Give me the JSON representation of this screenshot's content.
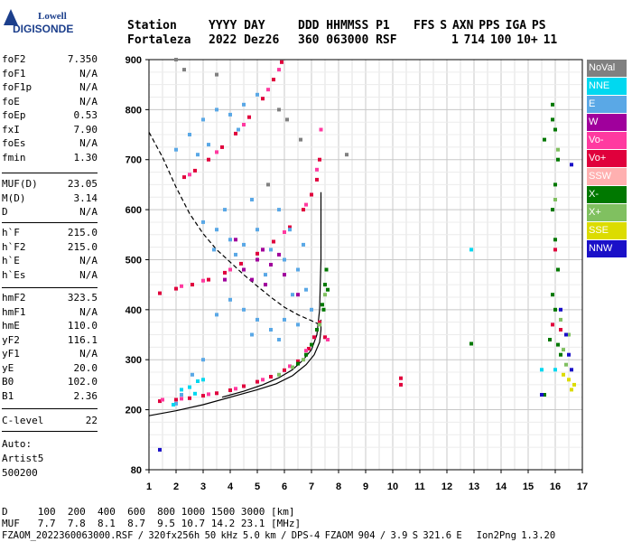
{
  "logo": {
    "line1": "Lowell",
    "line2": "DIGISONDE"
  },
  "header": {
    "labels": [
      "Station",
      "YYYY DAY",
      "DDD HHMMSS P1",
      "FFS S AXN PPS IGA PS"
    ],
    "values": [
      "Fortaleza",
      "2022 Dez26",
      "360 063000 RSF",
      "1 714 100 10+ 11"
    ]
  },
  "params": {
    "group1": [
      {
        "k": "foF2",
        "v": "7.350"
      },
      {
        "k": "foF1",
        "v": "N/A"
      },
      {
        "k": "foF1p",
        "v": "N/A"
      },
      {
        "k": "foE",
        "v": "N/A"
      },
      {
        "k": "foEp",
        "v": "0.53"
      },
      {
        "k": "fxI",
        "v": "7.90"
      },
      {
        "k": "foEs",
        "v": "N/A"
      },
      {
        "k": "fmin",
        "v": "1.30"
      }
    ],
    "group2": [
      {
        "k": "MUF(D)",
        "v": "23.05"
      },
      {
        "k": "M(D)",
        "v": "3.14"
      },
      {
        "k": "D",
        "v": "N/A"
      }
    ],
    "group3": [
      {
        "k": "h`F",
        "v": "215.0"
      },
      {
        "k": "h`F2",
        "v": "215.0"
      },
      {
        "k": "h`E",
        "v": "N/A"
      },
      {
        "k": "h`Es",
        "v": "N/A"
      }
    ],
    "group4": [
      {
        "k": "hmF2",
        "v": "323.5"
      },
      {
        "k": "hmF1",
        "v": "N/A"
      },
      {
        "k": "hmE",
        "v": "110.0"
      },
      {
        "k": "yF2",
        "v": "116.1"
      },
      {
        "k": "yF1",
        "v": "N/A"
      },
      {
        "k": "yE",
        "v": "20.0"
      },
      {
        "k": "B0",
        "v": "102.0"
      },
      {
        "k": "B1",
        "v": "2.36"
      }
    ],
    "group5": [
      {
        "k": "C-level",
        "v": "22"
      }
    ],
    "footer_lines": [
      "Auto:",
      "Artist5",
      "500200"
    ]
  },
  "legend": [
    {
      "label": "NoVal",
      "color": "#808080"
    },
    {
      "label": "NNE",
      "color": "#00d8f0"
    },
    {
      "label": "E",
      "color": "#5aa8e6"
    },
    {
      "label": "W",
      "color": "#a0009c"
    },
    {
      "label": "Vo-",
      "color": "#ff3aa0"
    },
    {
      "label": "Vo+",
      "color": "#e0003c"
    },
    {
      "label": "SSW",
      "color": "#ffb0b0"
    },
    {
      "label": "X-",
      "color": "#007800"
    },
    {
      "label": "X+",
      "color": "#80c060"
    },
    {
      "label": "SSE",
      "color": "#dcdc00"
    },
    {
      "label": "NNW",
      "color": "#1a10c8"
    }
  ],
  "chart_data": {
    "type": "scatter",
    "xlim": [
      1,
      17
    ],
    "ylim": [
      80,
      900
    ],
    "x_ticks": [
      1,
      2,
      3,
      4,
      5,
      6,
      7,
      8,
      9,
      10,
      11,
      12,
      13,
      14,
      15,
      16,
      17
    ],
    "y_ticks": [
      80,
      200,
      300,
      400,
      500,
      600,
      700,
      800,
      900
    ],
    "grid": true,
    "series": [
      {
        "color": "#e0003c",
        "points": [
          [
            1.4,
            217
          ],
          [
            2.0,
            220
          ],
          [
            2.5,
            223
          ],
          [
            3.0,
            228
          ],
          [
            3.5,
            233
          ],
          [
            4.0,
            239
          ],
          [
            4.5,
            247
          ],
          [
            5.0,
            256
          ],
          [
            5.5,
            266
          ],
          [
            6.0,
            279
          ],
          [
            6.5,
            297
          ],
          [
            6.9,
            322
          ],
          [
            7.1,
            345
          ],
          [
            7.3,
            375
          ],
          [
            7.5,
            345
          ]
        ]
      },
      {
        "color": "#ff3aa0",
        "points": [
          [
            1.5,
            220
          ],
          [
            2.2,
            222
          ],
          [
            3.2,
            231
          ],
          [
            4.2,
            242
          ],
          [
            5.2,
            260
          ],
          [
            6.2,
            287
          ],
          [
            6.8,
            318
          ],
          [
            7.2,
            360
          ],
          [
            7.6,
            340
          ]
        ]
      },
      {
        "color": "#007800",
        "points": [
          [
            6.5,
            292
          ],
          [
            6.8,
            310
          ],
          [
            7.0,
            330
          ],
          [
            7.2,
            360
          ],
          [
            7.4,
            410
          ],
          [
            7.5,
            450
          ],
          [
            7.55,
            480
          ],
          [
            7.6,
            440
          ],
          [
            7.45,
            400
          ]
        ]
      },
      {
        "color": "#80c060",
        "points": [
          [
            5.8,
            270
          ],
          [
            6.3,
            285
          ],
          [
            6.7,
            300
          ],
          [
            7.3,
            370
          ],
          [
            7.5,
            430
          ]
        ]
      },
      {
        "color": "#e0003c",
        "points": [
          [
            1.4,
            433
          ],
          [
            2.0,
            442
          ],
          [
            2.6,
            450
          ],
          [
            3.2,
            460
          ],
          [
            3.8,
            474
          ],
          [
            4.4,
            492
          ],
          [
            5.0,
            512
          ],
          [
            5.6,
            536
          ],
          [
            6.2,
            565
          ],
          [
            6.7,
            600
          ],
          [
            7.0,
            630
          ],
          [
            7.2,
            660
          ],
          [
            7.3,
            700
          ]
        ]
      },
      {
        "color": "#ff3aa0",
        "points": [
          [
            2.2,
            447
          ],
          [
            3.0,
            458
          ],
          [
            4.0,
            480
          ],
          [
            5.2,
            520
          ],
          [
            6.0,
            555
          ],
          [
            6.8,
            610
          ],
          [
            7.2,
            680
          ],
          [
            7.35,
            760
          ]
        ]
      },
      {
        "color": "#e0003c",
        "points": [
          [
            2.3,
            665
          ],
          [
            2.7,
            678
          ],
          [
            3.2,
            700
          ],
          [
            3.7,
            725
          ],
          [
            4.2,
            752
          ],
          [
            4.7,
            785
          ],
          [
            5.2,
            822
          ],
          [
            5.6,
            860
          ],
          [
            5.9,
            895
          ]
        ]
      },
      {
        "color": "#ff3aa0",
        "points": [
          [
            2.5,
            670
          ],
          [
            3.5,
            715
          ],
          [
            4.5,
            770
          ],
          [
            5.4,
            840
          ],
          [
            5.8,
            880
          ]
        ]
      },
      {
        "color": "#5aa8e6",
        "points": [
          [
            2.0,
            720
          ],
          [
            2.5,
            750
          ],
          [
            3.0,
            780
          ],
          [
            3.5,
            800
          ],
          [
            4.0,
            790
          ],
          [
            4.5,
            810
          ],
          [
            5.0,
            830
          ],
          [
            3.2,
            730
          ],
          [
            2.8,
            710
          ],
          [
            4.3,
            760
          ]
        ]
      },
      {
        "color": "#5aa8e6",
        "points": [
          [
            3.0,
            575
          ],
          [
            3.5,
            560
          ],
          [
            4.0,
            540
          ],
          [
            4.5,
            530
          ],
          [
            5.0,
            560
          ],
          [
            5.5,
            520
          ],
          [
            6.0,
            500
          ],
          [
            6.5,
            480
          ],
          [
            5.8,
            600
          ],
          [
            4.8,
            620
          ],
          [
            3.8,
            600
          ],
          [
            6.2,
            560
          ],
          [
            6.7,
            530
          ],
          [
            5.3,
            470
          ],
          [
            4.2,
            510
          ],
          [
            3.4,
            520
          ]
        ]
      },
      {
        "color": "#5aa8e6",
        "points": [
          [
            4.0,
            420
          ],
          [
            4.5,
            400
          ],
          [
            5.0,
            380
          ],
          [
            5.5,
            360
          ],
          [
            6.0,
            380
          ],
          [
            6.5,
            370
          ],
          [
            7.0,
            400
          ],
          [
            4.8,
            350
          ],
          [
            5.8,
            340
          ],
          [
            3.5,
            390
          ],
          [
            6.8,
            440
          ],
          [
            2.2,
            230
          ],
          [
            2.0,
            212
          ],
          [
            3.0,
            300
          ],
          [
            2.6,
            270
          ],
          [
            6.3,
            430
          ]
        ]
      },
      {
        "color": "#a0009c",
        "points": [
          [
            4.5,
            480
          ],
          [
            5.0,
            500
          ],
          [
            5.5,
            490
          ],
          [
            6.0,
            470
          ],
          [
            4.8,
            460
          ],
          [
            5.3,
            450
          ],
          [
            6.5,
            430
          ],
          [
            5.2,
            520
          ],
          [
            4.2,
            540
          ],
          [
            5.8,
            510
          ],
          [
            3.8,
            460
          ]
        ]
      },
      {
        "color": "#007800",
        "points": [
          [
            15.9,
            780
          ],
          [
            16.0,
            760
          ],
          [
            16.1,
            700
          ],
          [
            16.0,
            650
          ],
          [
            15.9,
            600
          ],
          [
            16.0,
            540
          ],
          [
            16.1,
            480
          ],
          [
            15.9,
            430
          ],
          [
            16.0,
            400
          ],
          [
            15.6,
            740
          ],
          [
            15.8,
            340
          ],
          [
            16.1,
            330
          ],
          [
            16.2,
            310
          ],
          [
            15.9,
            810
          ],
          [
            12.9,
            332
          ],
          [
            15.6,
            230
          ]
        ]
      },
      {
        "color": "#80c060",
        "points": [
          [
            16.1,
            720
          ],
          [
            16.0,
            620
          ],
          [
            16.2,
            380
          ],
          [
            16.3,
            320
          ],
          [
            16.4,
            290
          ],
          [
            16.5,
            350
          ]
        ]
      },
      {
        "color": "#1a10c8",
        "points": [
          [
            16.6,
            690
          ],
          [
            16.4,
            350
          ],
          [
            16.5,
            310
          ],
          [
            15.5,
            230
          ],
          [
            16.6,
            280
          ],
          [
            16.2,
            400
          ],
          [
            1.4,
            120
          ]
        ]
      },
      {
        "color": "#dcdc00",
        "points": [
          [
            16.7,
            250
          ],
          [
            16.5,
            260
          ],
          [
            16.3,
            270
          ],
          [
            16.6,
            240
          ]
        ]
      },
      {
        "color": "#e0003c",
        "points": [
          [
            16.0,
            520
          ],
          [
            15.9,
            370
          ],
          [
            16.2,
            360
          ],
          [
            10.3,
            263
          ],
          [
            10.3,
            250
          ]
        ]
      },
      {
        "color": "#00d8f0",
        "points": [
          [
            2.2,
            240
          ],
          [
            2.5,
            245
          ],
          [
            2.8,
            257
          ],
          [
            3.0,
            260
          ],
          [
            1.9,
            210
          ],
          [
            2.7,
            232
          ],
          [
            12.9,
            520
          ],
          [
            15.5,
            280
          ],
          [
            16.0,
            280
          ]
        ]
      },
      {
        "color": "#808080",
        "points": [
          [
            2.0,
            900
          ],
          [
            2.3,
            880
          ],
          [
            3.5,
            870
          ],
          [
            5.4,
            650
          ],
          [
            5.8,
            800
          ],
          [
            6.1,
            780
          ],
          [
            6.6,
            740
          ],
          [
            8.3,
            710
          ]
        ]
      }
    ],
    "lines": [
      {
        "style": "solid",
        "points": [
          [
            1.0,
            188
          ],
          [
            2.0,
            198
          ],
          [
            3.0,
            210
          ],
          [
            4.0,
            225
          ],
          [
            5.0,
            240
          ],
          [
            5.7,
            252
          ],
          [
            6.3,
            268
          ],
          [
            6.8,
            290
          ],
          [
            7.1,
            310
          ],
          [
            7.3,
            335
          ],
          [
            7.35,
            360
          ],
          [
            7.35,
            380
          ]
        ]
      },
      {
        "style": "solid",
        "points": [
          [
            3.7,
            225
          ],
          [
            4.5,
            237
          ],
          [
            5.2,
            250
          ],
          [
            5.8,
            264
          ],
          [
            6.3,
            280
          ],
          [
            6.7,
            300
          ],
          [
            7.0,
            320
          ],
          [
            7.2,
            350
          ],
          [
            7.3,
            400
          ],
          [
            7.35,
            500
          ],
          [
            7.35,
            635
          ]
        ]
      },
      {
        "style": "dashed",
        "points": [
          [
            1.0,
            755
          ],
          [
            1.5,
            705
          ],
          [
            2.0,
            645
          ],
          [
            2.5,
            592
          ],
          [
            3.0,
            552
          ],
          [
            3.5,
            520
          ],
          [
            4.0,
            495
          ],
          [
            4.5,
            470
          ],
          [
            5.0,
            447
          ],
          [
            5.5,
            425
          ],
          [
            6.0,
            405
          ],
          [
            6.5,
            390
          ],
          [
            7.0,
            378
          ],
          [
            7.3,
            370
          ]
        ]
      }
    ]
  },
  "bottom": {
    "line1": "D     100  200  400  600  800 1000 1500 3000 [km]",
    "line2": "MUF   7.7  7.8  8.1  8.7  9.5 10.7 14.2 23.1 [MHz]",
    "line3": "FZAOM_2022360063000.RSF / 320fx256h 50 kHz 5.0 km / DPS-4 FZAOM 904 / 3.9 S 321.6 E   Ion2Png 1.3.20"
  }
}
